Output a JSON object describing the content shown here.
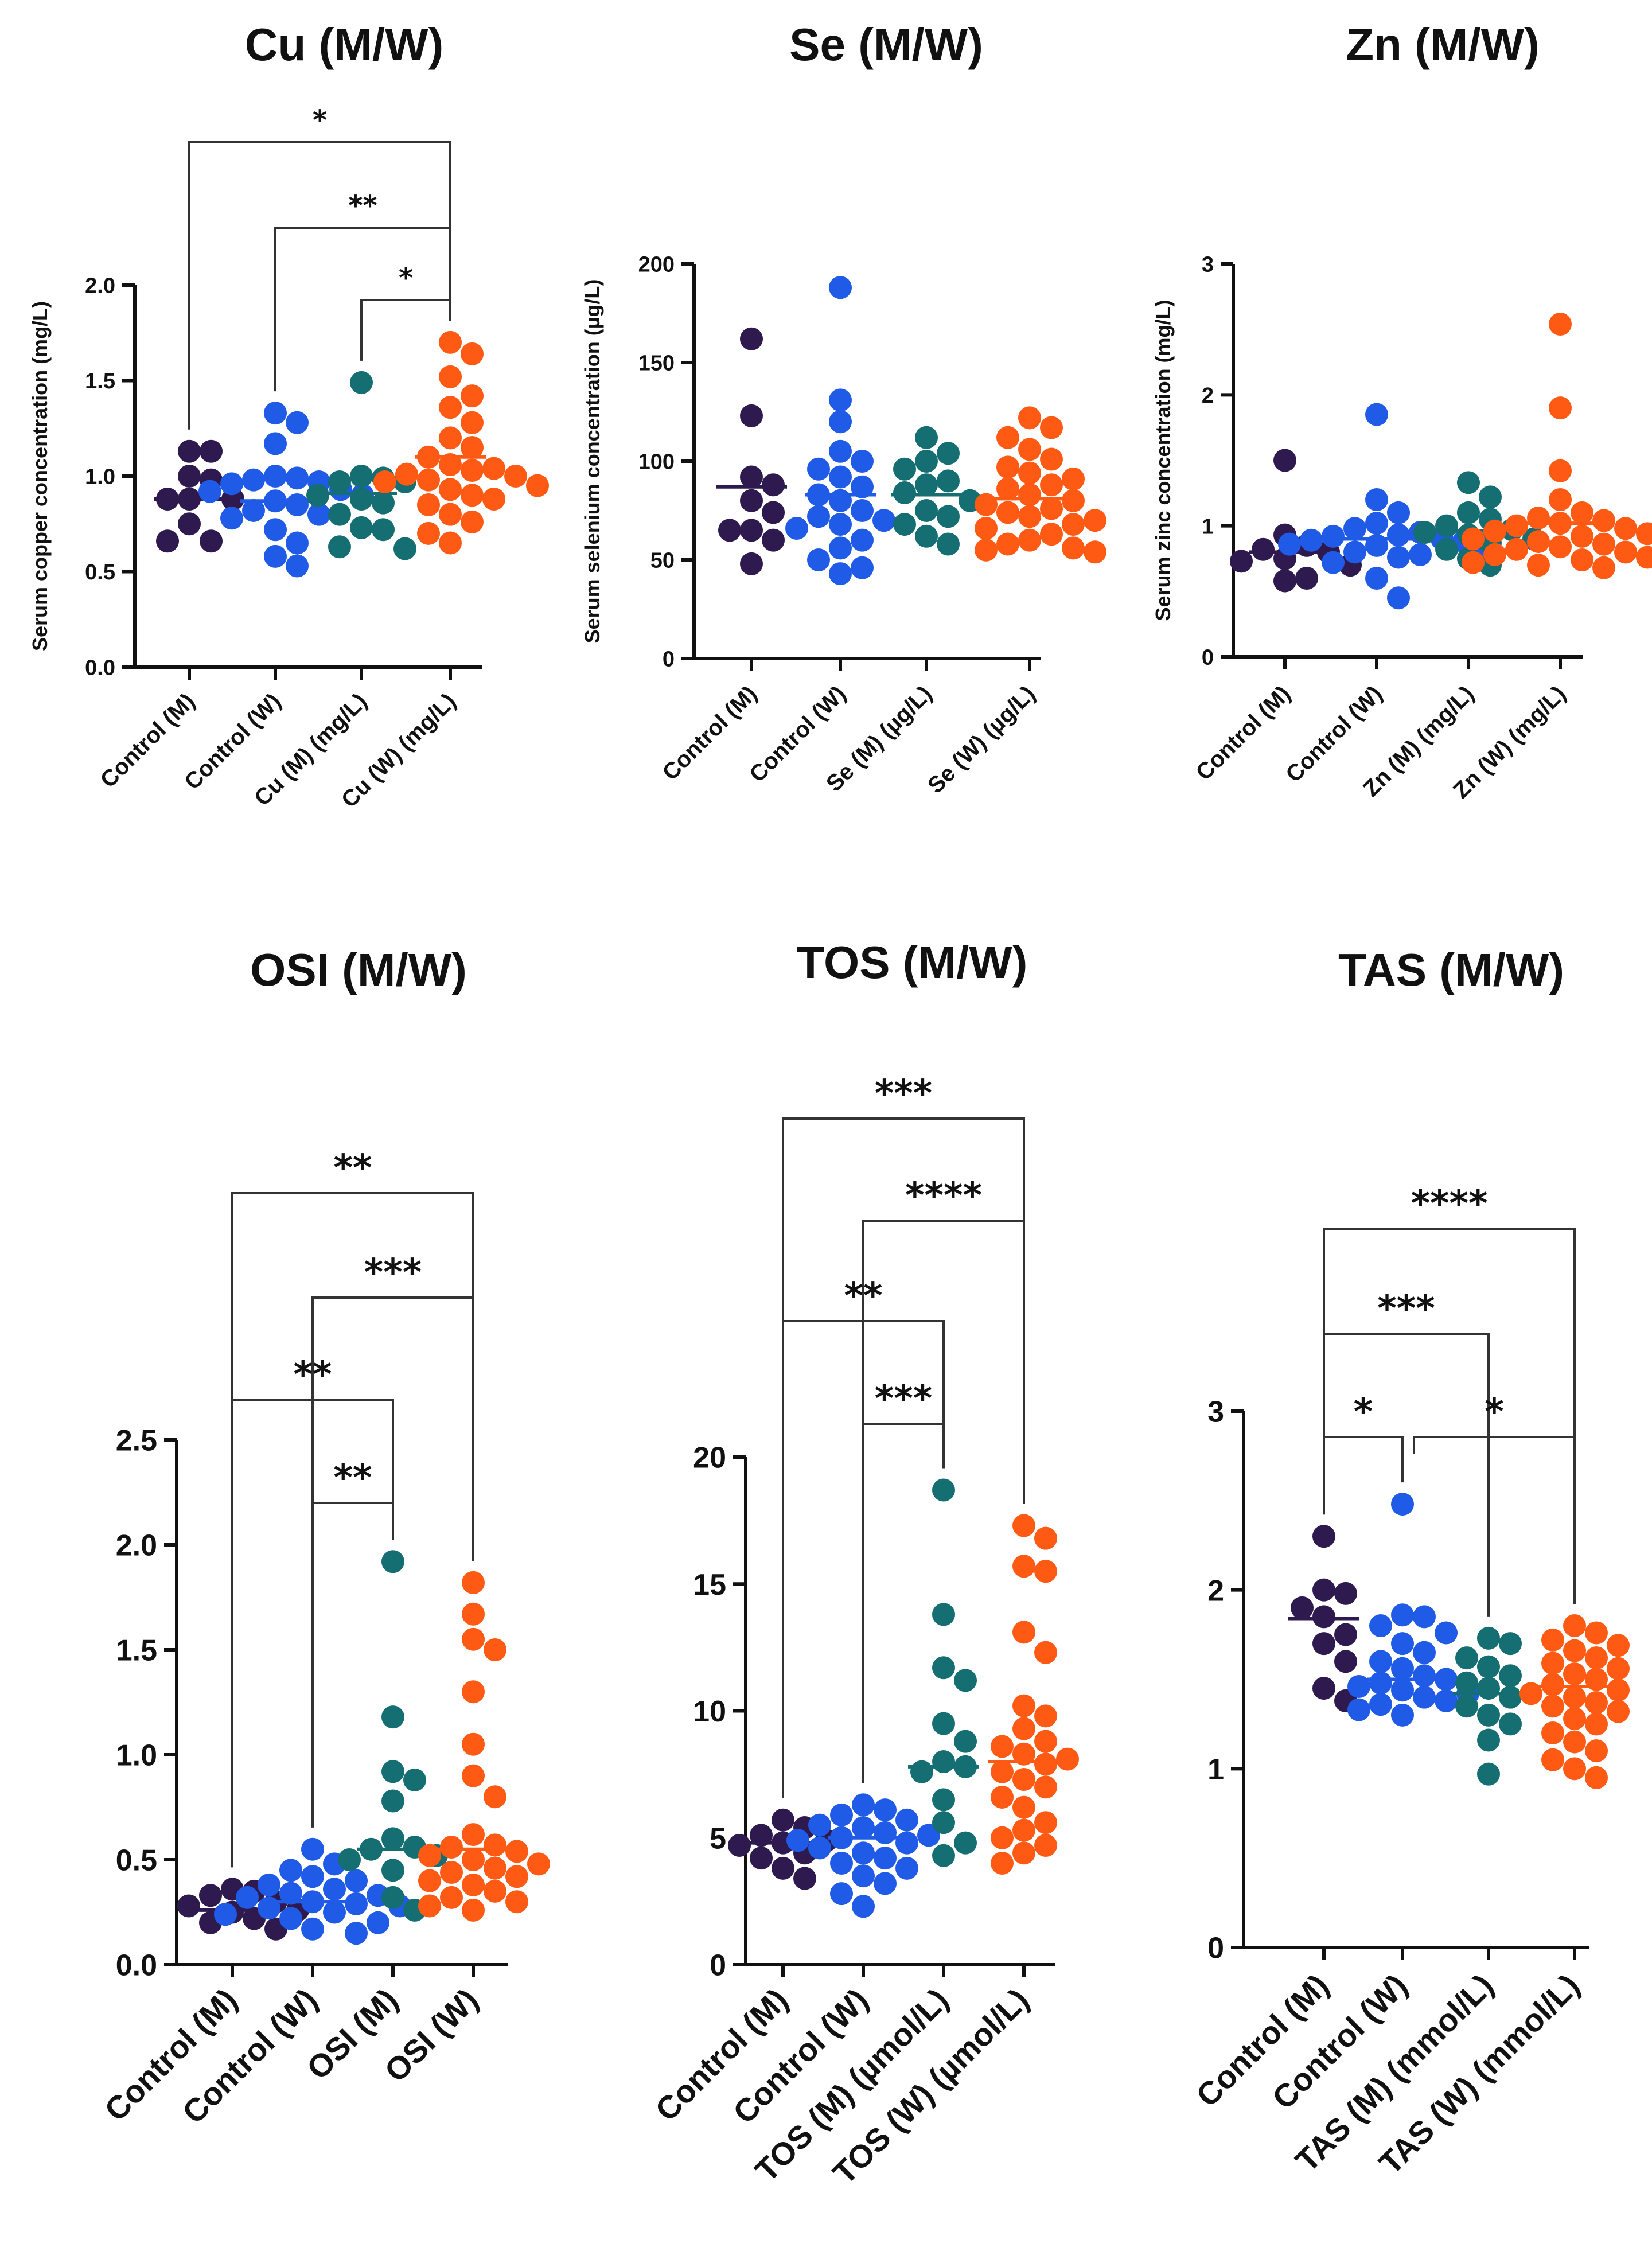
{
  "colors": {
    "g0": "#2E1A4F",
    "g1": "#1F5BE6",
    "g2": "#146E72",
    "g3": "#FF5A14"
  },
  "chart_data": [
    {
      "type": "scatter",
      "title": "Cu (M/W)",
      "ylabel": "Serum copper concentration (mg/L)",
      "xlabel": "",
      "ylim": [
        0,
        2.0
      ],
      "yticks": [
        "0.0",
        "0.5",
        "1.0",
        "1.5",
        "2.0"
      ],
      "categories": [
        "Control (M)",
        "Control (W)",
        "Cu (M) (mg/L)",
        "Cu (W) (mg/L)"
      ],
      "means": [
        0.88,
        0.87,
        0.91,
        1.1
      ],
      "series": [
        {
          "name": "Control (M)",
          "values": [
            1.13,
            1.13,
            1.0,
            0.98,
            0.88,
            0.88,
            0.88,
            0.75,
            0.66,
            0.66
          ]
        },
        {
          "name": "Control (W)",
          "values": [
            1.33,
            1.28,
            1.17,
            1.0,
            0.99,
            0.98,
            0.97,
            0.96,
            0.93,
            0.92,
            0.9,
            0.87,
            0.85,
            0.82,
            0.8,
            0.78,
            0.72,
            0.65,
            0.58,
            0.53
          ]
        },
        {
          "name": "Cu (M) (mg/L)",
          "values": [
            1.49,
            1.0,
            0.99,
            0.97,
            0.97,
            0.9,
            0.88,
            0.86,
            0.8,
            0.73,
            0.72,
            0.63,
            0.62
          ]
        },
        {
          "name": "Cu (W) (mg/L)",
          "values": [
            1.7,
            1.64,
            1.52,
            1.42,
            1.36,
            1.28,
            1.2,
            1.15,
            1.1,
            1.06,
            1.04,
            1.03,
            1.01,
            1.0,
            0.98,
            0.97,
            0.95,
            0.93,
            0.9,
            0.88,
            0.85,
            0.8,
            0.76,
            0.7,
            0.65
          ]
        }
      ],
      "comparisons": [
        {
          "from": "Control (M)",
          "to": "Cu (W) (mg/L)",
          "label": "*"
        },
        {
          "from": "Control (W)",
          "to": "Cu (W) (mg/L)",
          "label": "**"
        },
        {
          "from": "Cu (M) (mg/L)",
          "to": "Cu (W) (mg/L)",
          "label": "*"
        }
      ]
    },
    {
      "type": "scatter",
      "title": "Se (M/W)",
      "ylabel": "Serum selenium concentration (µg/L)",
      "xlabel": "",
      "ylim": [
        0,
        200
      ],
      "yticks": [
        "0",
        "50",
        "100",
        "150",
        "200"
      ],
      "categories": [
        "Control (M)",
        "Control (W)",
        "Se (M) (µg/L)",
        "Se (W) (µg/L)"
      ],
      "means": [
        87,
        83,
        83,
        81
      ],
      "series": [
        {
          "name": "Control (M)",
          "values": [
            162,
            123,
            92,
            88,
            80,
            74,
            65,
            65,
            60,
            48
          ]
        },
        {
          "name": "Control (W)",
          "values": [
            188,
            131,
            120,
            105,
            100,
            96,
            92,
            87,
            83,
            80,
            75,
            72,
            70,
            68,
            66,
            60,
            56,
            50,
            46,
            43
          ]
        },
        {
          "name": "Se (M) (µg/L)",
          "values": [
            112,
            104,
            100,
            96,
            90,
            88,
            84,
            80,
            75,
            72,
            68,
            62,
            58
          ]
        },
        {
          "name": "Se (W) (µg/L)",
          "values": [
            122,
            117,
            112,
            106,
            101,
            97,
            94,
            91,
            88,
            86,
            83,
            80,
            78,
            76,
            74,
            72,
            70,
            68,
            66,
            63,
            60,
            58,
            56,
            55,
            54
          ]
        }
      ],
      "comparisons": []
    },
    {
      "type": "scatter",
      "title": "Zn (M/W)",
      "ylabel": "Serum zinc concentration (mg/L)",
      "xlabel": "",
      "ylim": [
        0,
        3
      ],
      "yticks": [
        "0",
        "1",
        "2",
        "3"
      ],
      "categories": [
        "Control (M)",
        "Control (W)",
        "Zn (M) (mg/L)",
        "Zn (W) (mg/L)"
      ],
      "means": [
        0.8,
        0.9,
        0.96,
        1.02
      ],
      "series": [
        {
          "name": "Control (M)",
          "values": [
            1.5,
            0.93,
            0.85,
            0.82,
            0.8,
            0.75,
            0.73,
            0.7,
            0.6,
            0.58
          ]
        },
        {
          "name": "Control (W)",
          "values": [
            1.85,
            1.2,
            1.1,
            1.02,
            0.98,
            0.95,
            0.93,
            0.92,
            0.9,
            0.89,
            0.88,
            0.86,
            0.85,
            0.83,
            0.8,
            0.78,
            0.76,
            0.72,
            0.6,
            0.45
          ]
        },
        {
          "name": "Zn (M) (mg/L)",
          "values": [
            1.33,
            1.22,
            1.1,
            1.05,
            1.0,
            0.97,
            0.95,
            0.93,
            0.9,
            0.87,
            0.82,
            0.75,
            0.7
          ]
        },
        {
          "name": "Zn (W) (mg/L)",
          "values": [
            2.54,
            1.9,
            1.42,
            1.2,
            1.1,
            1.06,
            1.04,
            1.02,
            1.0,
            0.98,
            0.96,
            0.94,
            0.92,
            0.9,
            0.88,
            0.86,
            0.84,
            0.82,
            0.8,
            0.78,
            0.76,
            0.74,
            0.72,
            0.7,
            0.68
          ]
        }
      ],
      "comparisons": []
    },
    {
      "type": "scatter",
      "title": "OSI (M/W)",
      "ylabel": "",
      "xlabel": "",
      "ylim": [
        0,
        2.5
      ],
      "yticks": [
        "0.0",
        "0.5",
        "1.0",
        "1.5",
        "2.0",
        "2.5"
      ],
      "categories": [
        "Control (M)",
        "Control (W)",
        "OSI (M)",
        "OSI (W)"
      ],
      "means": [
        0.26,
        0.3,
        0.55,
        0.55
      ],
      "series": [
        {
          "name": "Control (M)",
          "values": [
            0.36,
            0.35,
            0.33,
            0.3,
            0.28,
            0.26,
            0.25,
            0.22,
            0.2,
            0.17
          ]
        },
        {
          "name": "Control (W)",
          "values": [
            0.55,
            0.48,
            0.45,
            0.42,
            0.4,
            0.38,
            0.36,
            0.34,
            0.33,
            0.32,
            0.3,
            0.29,
            0.28,
            0.27,
            0.25,
            0.24,
            0.22,
            0.2,
            0.17,
            0.15
          ]
        },
        {
          "name": "OSI (M)",
          "values": [
            1.92,
            1.18,
            0.92,
            0.88,
            0.78,
            0.6,
            0.56,
            0.55,
            0.52,
            0.5,
            0.45,
            0.32,
            0.26
          ]
        },
        {
          "name": "OSI (W)",
          "values": [
            1.82,
            1.67,
            1.55,
            1.5,
            1.3,
            1.05,
            0.9,
            0.8,
            0.62,
            0.57,
            0.56,
            0.54,
            0.52,
            0.5,
            0.48,
            0.46,
            0.44,
            0.42,
            0.4,
            0.38,
            0.35,
            0.32,
            0.3,
            0.28,
            0.26
          ]
        }
      ],
      "comparisons": [
        {
          "from": "Control (M)",
          "to": "OSI (W)",
          "label": "**"
        },
        {
          "from": "Control (W)",
          "to": "OSI (W)",
          "label": "***"
        },
        {
          "from": "Control (M)",
          "to": "OSI (M)",
          "label": "**"
        },
        {
          "from": "Control (W)",
          "to": "OSI (M)",
          "label": "**"
        }
      ]
    },
    {
      "type": "scatter",
      "title": "TOS (M/W)",
      "ylabel": "",
      "xlabel": "",
      "ylim": [
        0,
        20
      ],
      "yticks": [
        "0",
        "5",
        "10",
        "15",
        "20"
      ],
      "categories": [
        "Control (M)",
        "Control (W)",
        "TOS (M) (µmol/L)",
        "TOS (W) (µmol/L)"
      ],
      "means": [
        4.8,
        5.0,
        7.8,
        8.0
      ],
      "series": [
        {
          "name": "Control (M)",
          "values": [
            5.7,
            5.4,
            5.1,
            4.9,
            4.8,
            4.7,
            4.4,
            4.2,
            3.8,
            3.4
          ]
        },
        {
          "name": "Control (W)",
          "values": [
            6.3,
            6.1,
            5.9,
            5.7,
            5.5,
            5.4,
            5.2,
            5.1,
            5.0,
            4.9,
            4.8,
            4.6,
            4.4,
            4.2,
            4.0,
            3.8,
            3.5,
            3.2,
            2.8,
            2.3
          ]
        },
        {
          "name": "TOS (M) (µmol/L)",
          "values": [
            18.7,
            13.8,
            11.7,
            11.2,
            9.5,
            8.8,
            8.0,
            7.8,
            7.6,
            6.5,
            5.6,
            4.8,
            4.3
          ]
        },
        {
          "name": "TOS (W) (µmol/L)",
          "values": [
            17.3,
            16.8,
            15.7,
            15.5,
            13.1,
            12.3,
            10.2,
            9.8,
            9.3,
            8.8,
            8.6,
            8.3,
            8.1,
            7.9,
            7.6,
            7.3,
            7.0,
            6.6,
            6.2,
            5.6,
            5.3,
            5.0,
            4.7,
            4.4,
            4.0
          ]
        }
      ],
      "comparisons": [
        {
          "from": "Control (M)",
          "to": "TOS (W) (µmol/L)",
          "label": "***"
        },
        {
          "from": "Control (W)",
          "to": "TOS (W) (µmol/L)",
          "label": "****"
        },
        {
          "from": "Control (M)",
          "to": "TOS (M) (µmol/L)",
          "label": "**"
        },
        {
          "from": "Control (W)",
          "to": "TOS (M) (µmol/L)",
          "label": "***"
        }
      ]
    },
    {
      "type": "scatter",
      "title": "TAS (M/W)",
      "ylabel": "",
      "xlabel": "",
      "ylim": [
        0,
        3
      ],
      "yticks": [
        "0",
        "1",
        "2",
        "3"
      ],
      "categories": [
        "Control (M)",
        "Control (W)",
        "TAS (M) (mmol/L)",
        "TAS (W) (mmol/L)"
      ],
      "means": [
        1.84,
        1.5,
        1.42,
        1.46
      ],
      "series": [
        {
          "name": "Control (M)",
          "values": [
            2.3,
            2.0,
            1.98,
            1.9,
            1.85,
            1.75,
            1.7,
            1.6,
            1.45,
            1.38
          ]
        },
        {
          "name": "Control (W)",
          "values": [
            2.48,
            1.86,
            1.85,
            1.8,
            1.76,
            1.7,
            1.65,
            1.6,
            1.56,
            1.52,
            1.5,
            1.48,
            1.46,
            1.44,
            1.42,
            1.4,
            1.38,
            1.36,
            1.33,
            1.3
          ]
        },
        {
          "name": "TAS (M) (mmol/L)",
          "values": [
            1.73,
            1.7,
            1.62,
            1.57,
            1.52,
            1.48,
            1.45,
            1.4,
            1.35,
            1.3,
            1.25,
            1.16,
            0.97
          ]
        },
        {
          "name": "TAS (W) (mmol/L)",
          "values": [
            1.8,
            1.76,
            1.72,
            1.69,
            1.66,
            1.62,
            1.59,
            1.56,
            1.53,
            1.5,
            1.47,
            1.44,
            1.42,
            1.4,
            1.37,
            1.35,
            1.32,
            1.28,
            1.25,
            1.2,
            1.15,
            1.1,
            1.05,
            1.0,
            0.95
          ]
        }
      ],
      "comparisons": [
        {
          "from": "Control (M)",
          "to": "TAS (W) (mmol/L)",
          "label": "****"
        },
        {
          "from": "Control (M)",
          "to": "TAS (M) (mmol/L)",
          "label": "***"
        },
        {
          "from": "Control (M)",
          "to": "Control (W)",
          "label": "*"
        },
        {
          "from": "Control (W)",
          "to": "TAS (W) (mmol/L)",
          "label": "*"
        }
      ]
    }
  ]
}
